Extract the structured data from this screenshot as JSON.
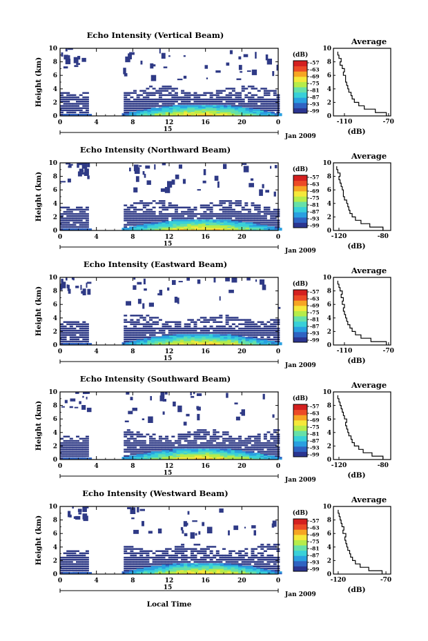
{
  "colors": {
    "echo_dark": "#2f3a86",
    "scale": [
      "#2b3590",
      "#2f63c2",
      "#2aa0e0",
      "#39d0d8",
      "#66e0a8",
      "#b6ec4a",
      "#f5e83a",
      "#f6a523",
      "#ec4a26",
      "#d4201f"
    ]
  },
  "footer": {
    "xlabel": "Local Time"
  },
  "chart_data": [
    {
      "type": "heatmap",
      "title": "Echo Intensity (Vertical Beam)",
      "ylabel": "Height (km)",
      "ylim": [
        0,
        10
      ],
      "yticks": [
        "0",
        "2",
        "4",
        "6",
        "8",
        "10"
      ],
      "xlim": [
        0,
        24
      ],
      "xticks": [
        "0",
        "4",
        "8",
        "12",
        "16",
        "20",
        "0"
      ],
      "date_day": "15",
      "date_label": "Jan 2009",
      "colorbar_unit": "(dB)",
      "colorbar_ticks": [
        "-57",
        "-63",
        "-69",
        "-75",
        "-81",
        "-87",
        "-93",
        "-99"
      ],
      "no_data_range": [
        3.2,
        6.8
      ],
      "profile": {
        "title": "Average",
        "xlabel": "(dB)",
        "xticks": [
          "-110",
          "-70"
        ],
        "xlim": [
          -120,
          -68
        ],
        "height_km": [
          0,
          0.5,
          1,
          1.5,
          2,
          2.5,
          3,
          3.5,
          4,
          4.5,
          5,
          5.5,
          6,
          6.5,
          7,
          7.5,
          8,
          8.5,
          9
        ],
        "echo_db": [
          -72,
          -82,
          -92,
          -97,
          -101,
          -103,
          -104,
          -106,
          -107,
          -108,
          -109,
          -109,
          -111,
          -110,
          -112,
          -114,
          -113,
          -115,
          -116
        ]
      }
    },
    {
      "type": "heatmap",
      "title": "Echo Intensity (Northward Beam)",
      "ylabel": "Height (km)",
      "ylim": [
        0,
        10
      ],
      "yticks": [
        "0",
        "2",
        "4",
        "6",
        "8",
        "10"
      ],
      "xlim": [
        0,
        24
      ],
      "xticks": [
        "0",
        "4",
        "8",
        "12",
        "16",
        "20",
        "0"
      ],
      "date_day": "15",
      "date_label": "Jan 2009",
      "colorbar_unit": "(dB)",
      "colorbar_ticks": [
        "-57",
        "-63",
        "-69",
        "-75",
        "-81",
        "-87",
        "-93",
        "-99"
      ],
      "no_data_range": [
        3.2,
        6.8
      ],
      "profile": {
        "title": "Average",
        "xlabel": "(dB)",
        "xticks": [
          "-120",
          "-80"
        ],
        "xlim": [
          -125,
          -73
        ],
        "height_km": [
          0,
          0.5,
          1,
          1.5,
          2,
          2.5,
          3,
          3.5,
          4,
          4.5,
          5,
          5.5,
          6,
          6.5,
          7,
          7.5,
          8,
          8.5,
          9
        ],
        "echo_db": [
          -80,
          -92,
          -100,
          -105,
          -108,
          -110,
          -111,
          -112,
          -113,
          -115,
          -116,
          -116,
          -117,
          -118,
          -119,
          -120,
          -119,
          -121,
          -122
        ]
      }
    },
    {
      "type": "heatmap",
      "title": "Echo Intensity (Eastward Beam)",
      "ylabel": "Height (km)",
      "ylim": [
        0,
        10
      ],
      "yticks": [
        "0",
        "2",
        "4",
        "6",
        "8",
        "10"
      ],
      "xlim": [
        0,
        24
      ],
      "xticks": [
        "0",
        "4",
        "8",
        "12",
        "16",
        "20",
        "0"
      ],
      "date_day": "15",
      "date_label": "Jan 2009",
      "colorbar_unit": "(dB)",
      "colorbar_ticks": [
        "-57",
        "-63",
        "-69",
        "-75",
        "-81",
        "-87",
        "-93",
        "-99"
      ],
      "no_data_range": [
        3.2,
        6.8
      ],
      "profile": {
        "title": "Average",
        "xlabel": "(dB)",
        "xticks": [
          "-110",
          "-70"
        ],
        "xlim": [
          -120,
          -68
        ],
        "height_km": [
          0,
          0.5,
          1,
          1.5,
          2,
          2.5,
          3,
          3.5,
          4,
          4.5,
          5,
          5.5,
          6,
          6.5,
          7,
          7.5,
          8,
          8.5,
          9
        ],
        "echo_db": [
          -72,
          -86,
          -95,
          -100,
          -103,
          -105,
          -107,
          -108,
          -109,
          -110,
          -111,
          -110,
          -112,
          -111,
          -113,
          -112,
          -114,
          -115,
          -116
        ]
      }
    },
    {
      "type": "heatmap",
      "title": "Echo Intensity (Southward Beam)",
      "ylabel": "Height (km)",
      "ylim": [
        0,
        10
      ],
      "yticks": [
        "0",
        "2",
        "4",
        "6",
        "8",
        "10"
      ],
      "xlim": [
        0,
        24
      ],
      "xticks": [
        "0",
        "4",
        "8",
        "12",
        "16",
        "20",
        "0"
      ],
      "date_day": "15",
      "date_label": "Jan 2009",
      "colorbar_unit": "(dB)",
      "colorbar_ticks": [
        "-57",
        "-63",
        "-69",
        "-75",
        "-81",
        "-87",
        "-93",
        "-99"
      ],
      "no_data_range": [
        3.2,
        6.8
      ],
      "profile": {
        "title": "Average",
        "xlabel": "(dB)",
        "xticks": [
          "-120",
          "-80"
        ],
        "xlim": [
          -125,
          -73
        ],
        "height_km": [
          0,
          0.5,
          1,
          1.5,
          2,
          2.5,
          3,
          3.5,
          4,
          4.5,
          5,
          5.5,
          6,
          6.5,
          7,
          7.5,
          8,
          8.5,
          9
        ],
        "echo_db": [
          -80,
          -90,
          -98,
          -102,
          -106,
          -108,
          -109,
          -111,
          -112,
          -113,
          -114,
          -113,
          -115,
          -116,
          -117,
          -118,
          -119,
          -120,
          -121
        ]
      }
    },
    {
      "type": "heatmap",
      "title": "Echo Intensity (Westward Beam)",
      "ylabel": "Height (km)",
      "ylim": [
        0,
        10
      ],
      "yticks": [
        "0",
        "2",
        "4",
        "6",
        "8",
        "10"
      ],
      "xlim": [
        0,
        24
      ],
      "xticks": [
        "0",
        "4",
        "8",
        "12",
        "16",
        "20",
        "0"
      ],
      "date_day": "15",
      "date_label": "Jan 2009",
      "colorbar_unit": "(dB)",
      "colorbar_ticks": [
        "-57",
        "-63",
        "-69",
        "-75",
        "-81",
        "-87",
        "-93",
        "-99"
      ],
      "no_data_range": [
        3.2,
        6.8
      ],
      "profile": {
        "title": "Average",
        "xlabel": "(dB)",
        "xticks": [
          "-120",
          "-70"
        ],
        "xlim": [
          -125,
          -65
        ],
        "height_km": [
          0,
          0.5,
          1,
          1.5,
          2,
          2.5,
          3,
          3.5,
          4,
          4.5,
          5,
          5.5,
          6,
          6.5,
          7,
          7.5,
          8,
          8.5,
          9
        ],
        "echo_db": [
          -74,
          -88,
          -97,
          -102,
          -105,
          -107,
          -108,
          -110,
          -111,
          -112,
          -113,
          -112,
          -115,
          -114,
          -116,
          -117,
          -118,
          -119,
          -120
        ]
      }
    }
  ]
}
